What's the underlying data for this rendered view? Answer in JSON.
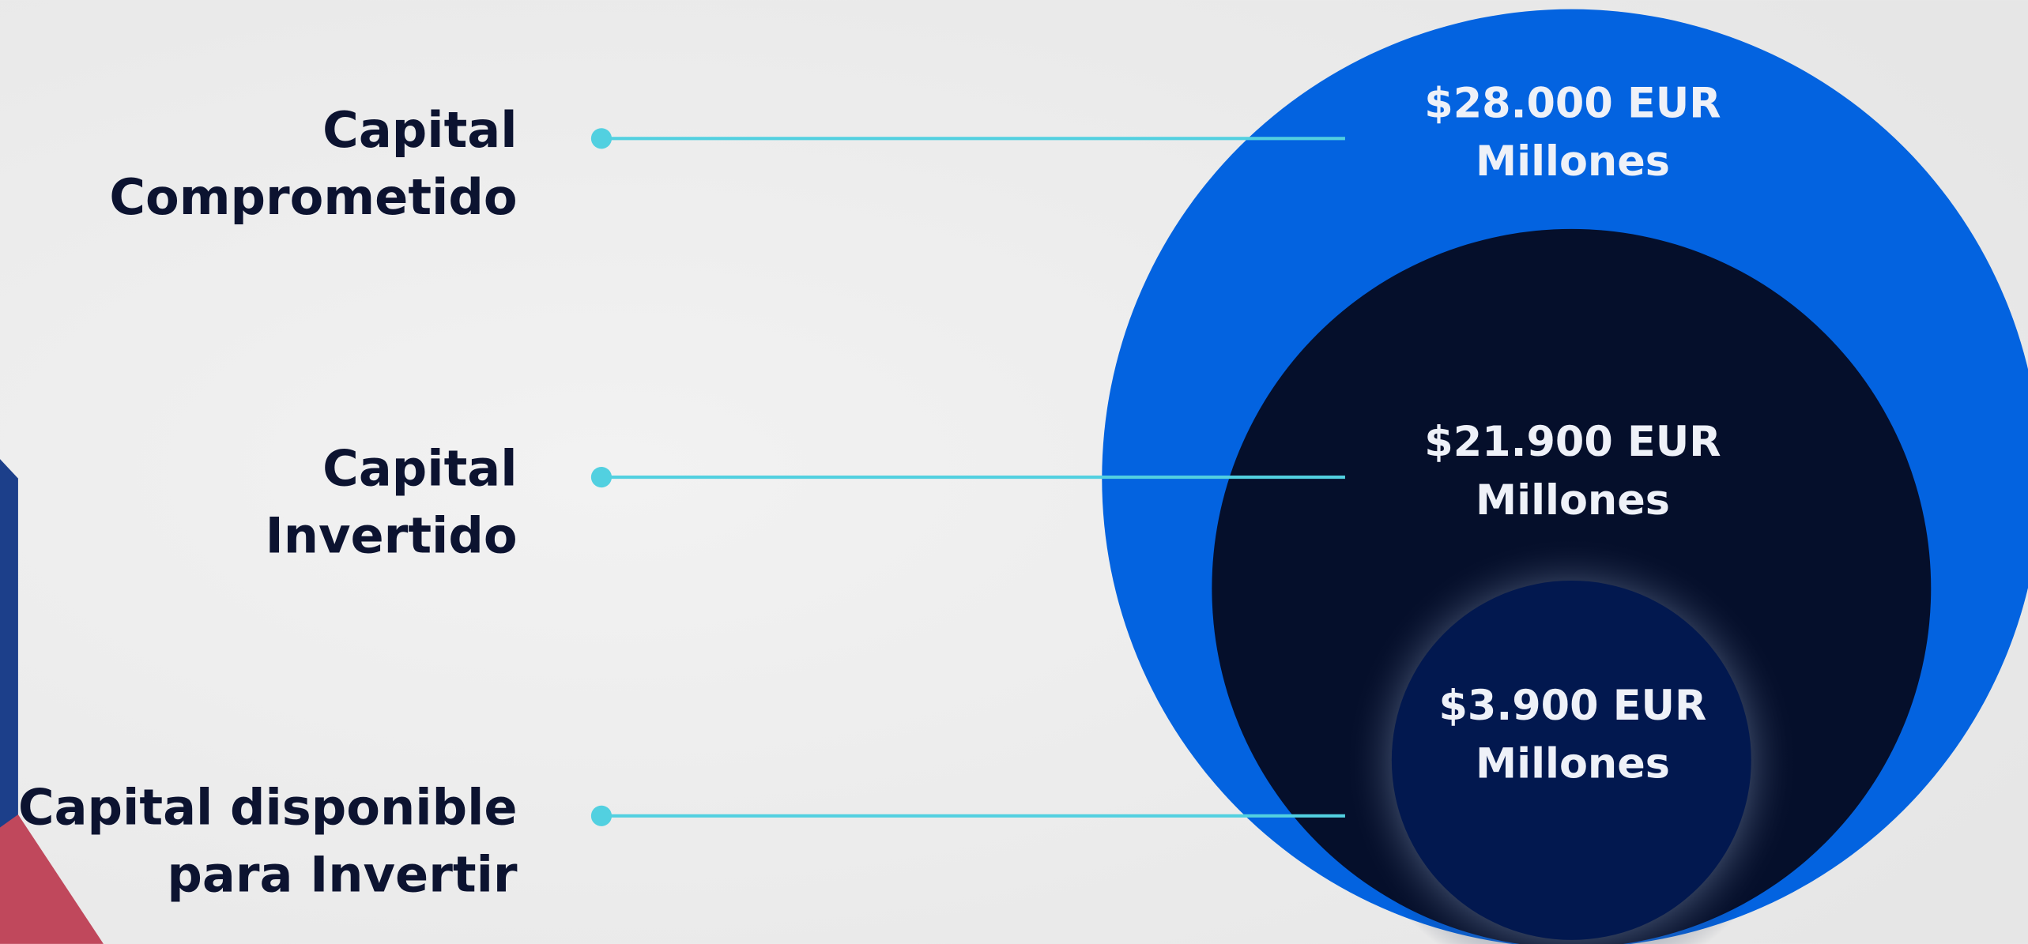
{
  "items": [
    {
      "label": [
        "Capital",
        "Comprometido"
      ],
      "value": [
        "$28.000 EUR",
        "Millones"
      ]
    },
    {
      "label": [
        "Capital",
        "Invertido"
      ],
      "value": [
        "$21.900 EUR",
        "Millones"
      ]
    },
    {
      "label": [
        "Capital disponible",
        "para Invertir"
      ],
      "value": [
        "$3.900 EUR",
        "Millones"
      ]
    }
  ]
}
